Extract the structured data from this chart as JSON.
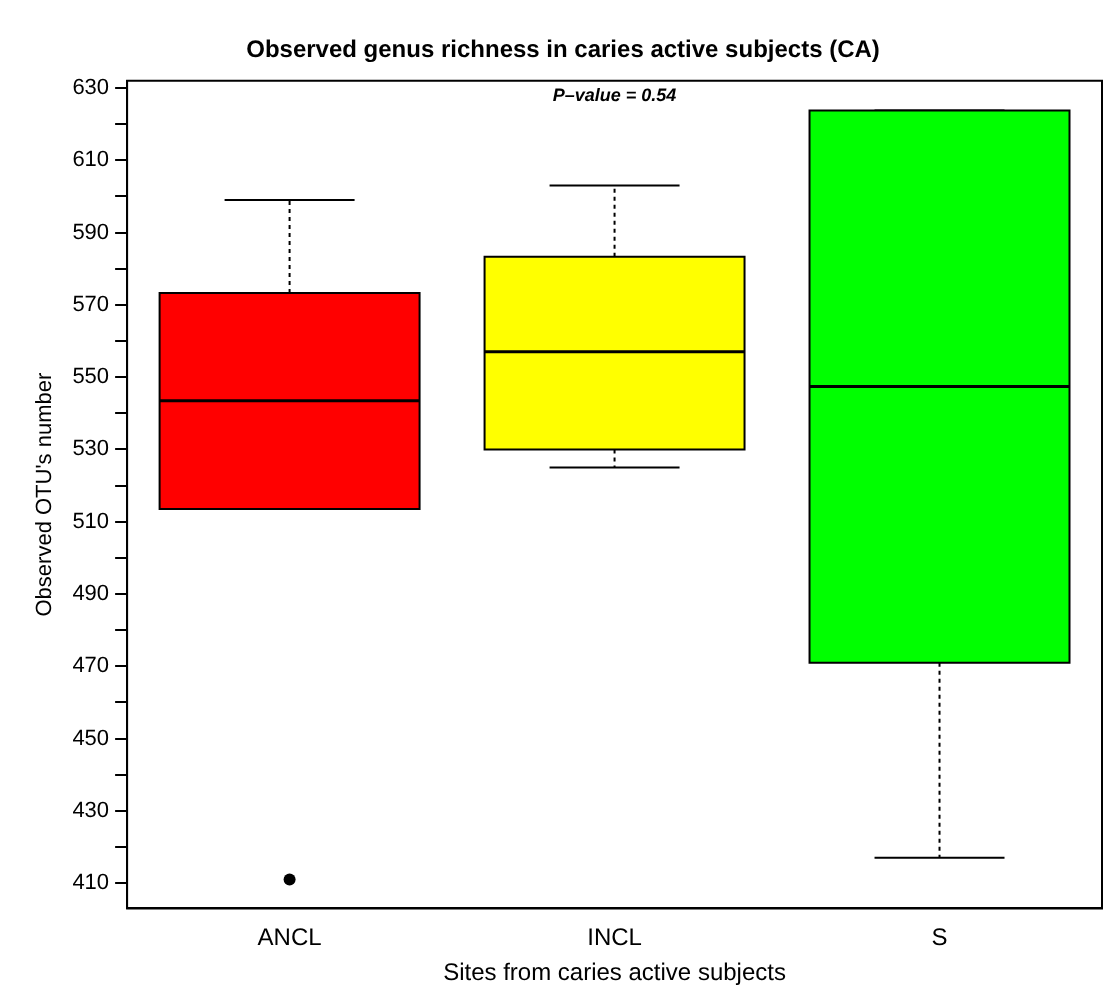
{
  "chart_data": {
    "type": "box",
    "title": "Observed genus richness in caries active subjects (CA)",
    "xlabel": "Sites from caries active subjects",
    "ylabel": "Observed OTU's number",
    "annotations": [
      "P–value = 0.54"
    ],
    "categories": [
      "ANCL",
      "INCL",
      "S"
    ],
    "colors": [
      "#ff0000",
      "#ffff00",
      "#00ff00"
    ],
    "boxes": [
      {
        "low": 513.5,
        "q1": 513.5,
        "median": 543.5,
        "q3": 573.3,
        "high": 599,
        "outliers": [
          411
        ]
      },
      {
        "low": 525,
        "q1": 530,
        "median": 557,
        "q3": 583.3,
        "high": 603
      },
      {
        "low": 417,
        "q1": 471,
        "median": 547.4,
        "q3": 623.8,
        "high": 623.8
      }
    ],
    "ylim": [
      403,
      632
    ],
    "yticks": [
      410,
      {
        "value": 420,
        "label": null
      },
      430,
      {
        "value": 440,
        "label": null
      },
      450,
      {
        "value": 460,
        "label": null
      },
      470,
      {
        "value": 480,
        "label": null
      },
      490,
      {
        "value": 500,
        "label": null
      },
      510,
      {
        "value": 520,
        "label": null
      },
      530,
      {
        "value": 540,
        "label": null
      },
      550,
      {
        "value": 560,
        "label": null
      },
      570,
      {
        "value": 580,
        "label": null
      },
      590,
      {
        "value": 600,
        "label": null
      },
      610,
      {
        "value": 620,
        "label": null
      },
      630
    ],
    "grid": false,
    "legend": false
  }
}
